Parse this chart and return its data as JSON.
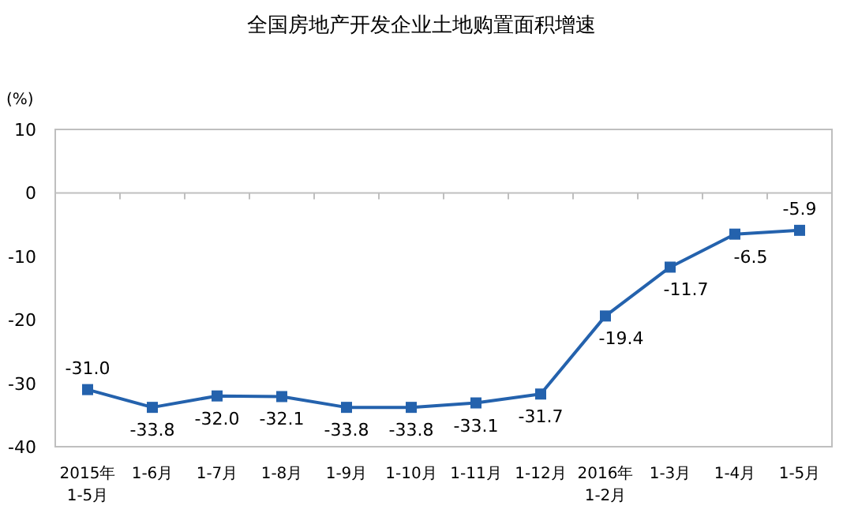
{
  "chart_data": {
    "type": "line",
    "title": "全国房地产开发企业土地购置面积增速",
    "ylabel": "(%)",
    "categories": [
      "2015年\n1-5月",
      "1-6月",
      "1-7月",
      "1-8月",
      "1-9月",
      "1-10月",
      "1-11月",
      "1-12月",
      "2016年\n1-2月",
      "1-3月",
      "1-4月",
      "1-5月"
    ],
    "series": [
      {
        "color": "#2462ad",
        "values": [
          -31.0,
          -33.8,
          -32.0,
          -32.1,
          -33.8,
          -33.8,
          -33.1,
          -31.7,
          -19.4,
          -11.7,
          -6.5,
          -5.9
        ]
      }
    ],
    "ylim": [
      -40,
      10
    ],
    "yticks": [
      -40,
      -30,
      -20,
      -10,
      0,
      10
    ],
    "value_labels": [
      "-31.0",
      "-33.8",
      "-32.0",
      "-32.1",
      "-33.8",
      "-33.8",
      "-33.1",
      "-31.7",
      "-19.4",
      "-11.7",
      "-6.5",
      "-5.9"
    ],
    "marker": "square",
    "line_style": "solid"
  }
}
